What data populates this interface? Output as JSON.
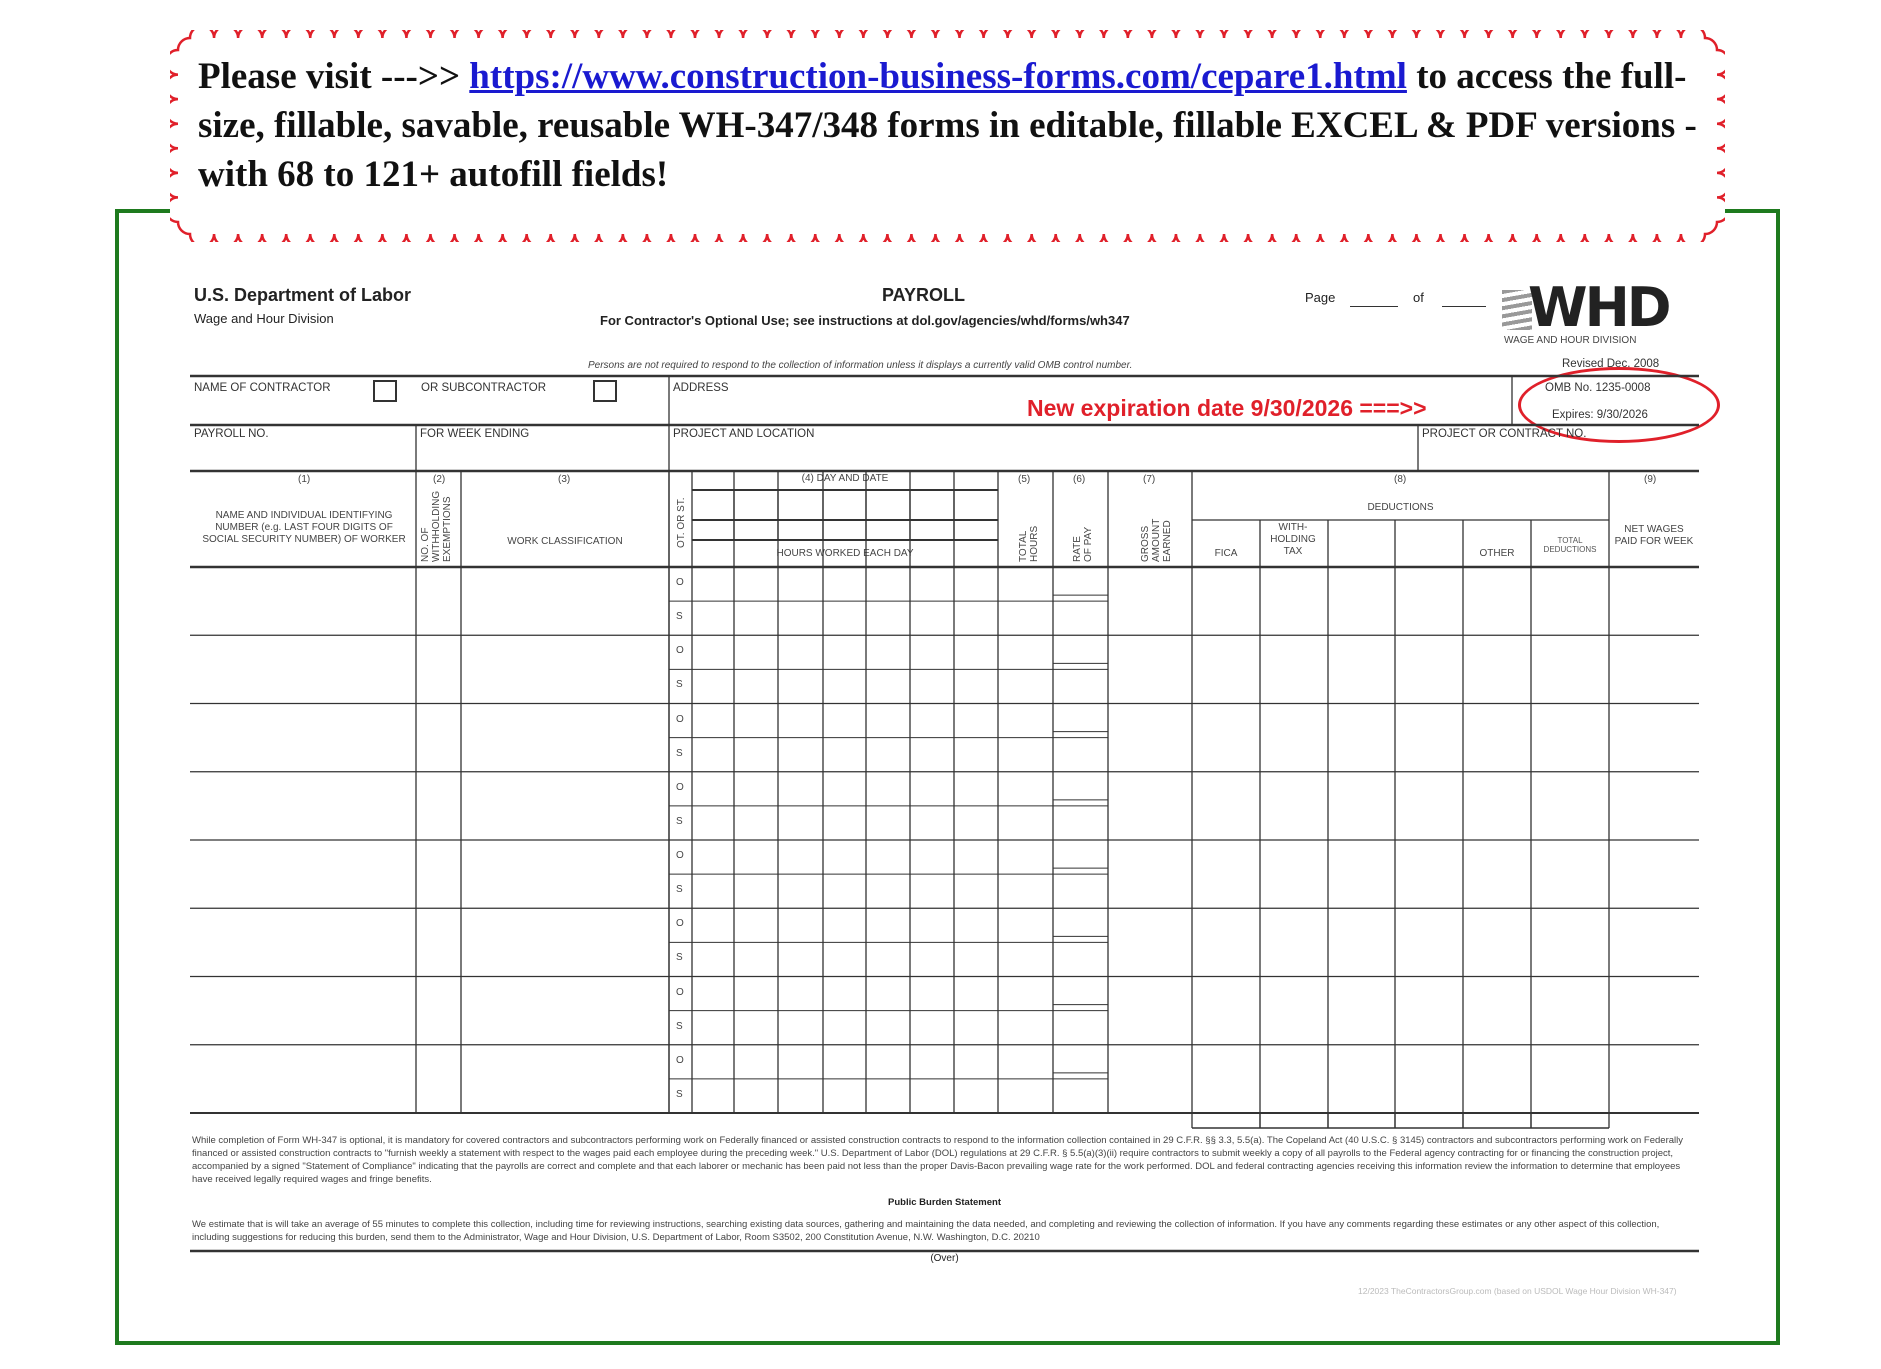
{
  "banner": {
    "prefix": "Please visit --->> ",
    "link": "https://www.construction-business-forms.com/cepare1.html",
    "suffix": " to access the full-size, fillable, savable, reusable WH-347/348 forms in editable, fillable EXCEL &  PDF versions - with 68 to 121+ autofill fields!",
    "border_color": "#e0202a",
    "link_color": "#1a1ad0"
  },
  "header": {
    "agency": "U.S. Department of Labor",
    "division": "Wage and Hour Division",
    "title": "PAYROLL",
    "subtitle": "For Contractor's Optional Use; see instructions at dol.gov/agencies/whd/forms/wh347",
    "page_label": "Page",
    "of_label": "of",
    "logo_text": "WHD",
    "logo_caption": "WAGE AND HOUR DIVISION",
    "omb_notice": "Persons are not required to respond to the collection of information unless it displays a currently valid OMB control number.",
    "revised": "Revised Dec. 2008",
    "omb_no": "OMB No. 1235-0008",
    "expires": "Expires: 9/30/2026",
    "new_expiration": "New expiration date 9/30/2026   ===>>"
  },
  "fields": {
    "contractor": "NAME OF CONTRACTOR",
    "subcontractor": "OR SUBCONTRACTOR",
    "address": "ADDRESS",
    "payroll_no": "PAYROLL NO.",
    "week_ending": "FOR WEEK ENDING",
    "project_location": "PROJECT AND LOCATION",
    "project_contract": "PROJECT OR CONTRACT NO."
  },
  "columns": {
    "c1_num": "(1)",
    "c1": "NAME AND INDIVIDUAL IDENTIFYING NUMBER (e.g. LAST FOUR DIGITS OF SOCIAL SECURITY NUMBER) OF WORKER",
    "c2_num": "(2)",
    "c2": "NO. OF WITHHOLDING EXEMPTIONS",
    "c3_num": "(3)",
    "c3": "WORK CLASSIFICATION",
    "ot_st": "OT. OR ST.",
    "c4": "(4) DAY AND DATE",
    "hours": "HOURS WORKED EACH DAY",
    "c5_num": "(5)",
    "c5": "TOTAL HOURS",
    "c6_num": "(6)",
    "c6": "RATE OF PAY",
    "c7_num": "(7)",
    "c7": "GROSS AMOUNT EARNED",
    "c8_num": "(8)",
    "c8": "DEDUCTIONS",
    "fica": "FICA",
    "withholding": "WITH-HOLDING TAX",
    "other": "OTHER",
    "total_ded": "TOTAL DEDUCTIONS",
    "c9_num": "(9)",
    "c9": "NET WAGES PAID FOR WEEK"
  },
  "row_codes": [
    "O",
    "S"
  ],
  "row_count": 8,
  "footer": {
    "para1": "While completion of Form WH-347 is optional, it is mandatory for covered contractors and subcontractors performing work on Federally financed or assisted construction contracts to respond to the information collection contained in 29 C.F.R. §§ 3.3, 5.5(a). The Copeland Act (40 U.S.C. § 3145) contractors and subcontractors performing work on Federally financed or assisted construction contracts to \"furnish weekly a statement with respect to the wages paid each employee during the preceding week.\" U.S. Department of Labor (DOL) regulations at 29 C.F.R. § 5.5(a)(3)(ii) require contractors to submit weekly a copy of all payrolls to the Federal agency contracting for or financing the construction project, accompanied by a signed \"Statement of Compliance\" indicating that the payrolls are correct and complete and that each laborer or mechanic has been paid not less than the proper Davis-Bacon prevailing wage rate for the work performed. DOL and federal contracting agencies receiving this information review the information to determine that employees have received legally required wages and fringe benefits.",
    "burden_title": "Public Burden Statement",
    "para2": "We estimate that is will take an average of 55 minutes to complete this collection, including time for reviewing instructions, searching existing data sources, gathering and maintaining the data needed, and completing and reviewing the collection of information. If you have any comments regarding these estimates or any other aspect of this collection, including suggestions for reducing this burden, send them to the Administrator, Wage and Hour Division, U.S. Department of Labor, Room S3502, 200 Constitution Avenue, N.W. Washington, D.C. 20210",
    "over": "(Over)",
    "credit": "12/2023 TheContractorsGroup.com (based on USDOL Wage Hour Division WH-347)"
  },
  "colors": {
    "frame": "#1e7a1e",
    "accent_red": "#e0202a"
  }
}
